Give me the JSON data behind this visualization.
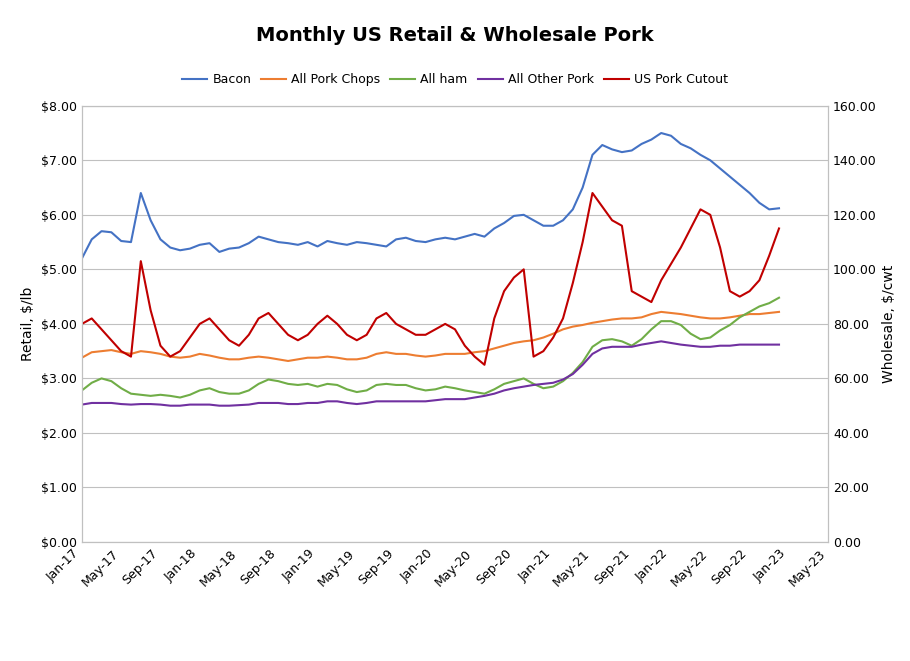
{
  "title": "Monthly US Retail & Wholesale Pork",
  "series": {
    "Bacon": [
      5.2,
      5.55,
      5.7,
      5.68,
      5.52,
      5.5,
      6.4,
      5.9,
      5.55,
      5.4,
      5.35,
      5.38,
      5.45,
      5.48,
      5.32,
      5.38,
      5.4,
      5.48,
      5.6,
      5.55,
      5.5,
      5.48,
      5.45,
      5.5,
      5.42,
      5.52,
      5.48,
      5.45,
      5.5,
      5.48,
      5.45,
      5.42,
      5.55,
      5.58,
      5.52,
      5.5,
      5.55,
      5.58,
      5.55,
      5.6,
      5.65,
      5.6,
      5.75,
      5.85,
      5.98,
      6.0,
      5.9,
      5.8,
      5.8,
      5.9,
      6.1,
      6.5,
      7.1,
      7.28,
      7.2,
      7.15,
      7.18,
      7.3,
      7.38,
      7.5,
      7.45,
      7.3,
      7.22,
      7.1,
      7.0,
      6.85,
      6.7,
      6.55,
      6.4,
      6.22,
      6.1,
      6.12
    ],
    "All Pork Chops": [
      3.38,
      3.48,
      3.5,
      3.52,
      3.48,
      3.45,
      3.5,
      3.48,
      3.45,
      3.4,
      3.38,
      3.4,
      3.45,
      3.42,
      3.38,
      3.35,
      3.35,
      3.38,
      3.4,
      3.38,
      3.35,
      3.32,
      3.35,
      3.38,
      3.38,
      3.4,
      3.38,
      3.35,
      3.35,
      3.38,
      3.45,
      3.48,
      3.45,
      3.45,
      3.42,
      3.4,
      3.42,
      3.45,
      3.45,
      3.45,
      3.48,
      3.5,
      3.55,
      3.6,
      3.65,
      3.68,
      3.7,
      3.75,
      3.82,
      3.9,
      3.95,
      3.98,
      4.02,
      4.05,
      4.08,
      4.1,
      4.1,
      4.12,
      4.18,
      4.22,
      4.2,
      4.18,
      4.15,
      4.12,
      4.1,
      4.1,
      4.12,
      4.15,
      4.18,
      4.18,
      4.2,
      4.22
    ],
    "All ham": [
      2.78,
      2.92,
      3.0,
      2.95,
      2.82,
      2.72,
      2.7,
      2.68,
      2.7,
      2.68,
      2.65,
      2.7,
      2.78,
      2.82,
      2.75,
      2.72,
      2.72,
      2.78,
      2.9,
      2.98,
      2.95,
      2.9,
      2.88,
      2.9,
      2.85,
      2.9,
      2.88,
      2.8,
      2.75,
      2.78,
      2.88,
      2.9,
      2.88,
      2.88,
      2.82,
      2.78,
      2.8,
      2.85,
      2.82,
      2.78,
      2.75,
      2.72,
      2.8,
      2.9,
      2.95,
      3.0,
      2.9,
      2.82,
      2.85,
      2.95,
      3.1,
      3.3,
      3.58,
      3.7,
      3.72,
      3.68,
      3.6,
      3.72,
      3.9,
      4.05,
      4.05,
      3.98,
      3.82,
      3.72,
      3.75,
      3.88,
      3.98,
      4.12,
      4.22,
      4.32,
      4.38,
      4.48
    ],
    "All Other Pork": [
      2.52,
      2.55,
      2.55,
      2.55,
      2.53,
      2.52,
      2.53,
      2.53,
      2.52,
      2.5,
      2.5,
      2.52,
      2.52,
      2.52,
      2.5,
      2.5,
      2.51,
      2.52,
      2.55,
      2.55,
      2.55,
      2.53,
      2.53,
      2.55,
      2.55,
      2.58,
      2.58,
      2.55,
      2.53,
      2.55,
      2.58,
      2.58,
      2.58,
      2.58,
      2.58,
      2.58,
      2.6,
      2.62,
      2.62,
      2.62,
      2.65,
      2.68,
      2.72,
      2.78,
      2.82,
      2.85,
      2.88,
      2.9,
      2.92,
      2.98,
      3.08,
      3.25,
      3.45,
      3.55,
      3.58,
      3.58,
      3.58,
      3.62,
      3.65,
      3.68,
      3.65,
      3.62,
      3.6,
      3.58,
      3.58,
      3.6,
      3.6,
      3.62,
      3.62,
      3.62,
      3.62,
      3.62
    ],
    "US Pork Cutout": [
      80.0,
      82.0,
      78.0,
      74.0,
      70.0,
      68.0,
      103.0,
      85.0,
      72.0,
      68.0,
      70.0,
      75.0,
      80.0,
      82.0,
      78.0,
      74.0,
      72.0,
      76.0,
      82.0,
      84.0,
      80.0,
      76.0,
      74.0,
      76.0,
      80.0,
      83.0,
      80.0,
      76.0,
      74.0,
      76.0,
      82.0,
      84.0,
      80.0,
      78.0,
      76.0,
      76.0,
      78.0,
      80.0,
      78.0,
      72.0,
      68.0,
      65.0,
      82.0,
      92.0,
      97.0,
      100.0,
      68.0,
      70.0,
      75.0,
      82.0,
      95.0,
      110.0,
      128.0,
      123.0,
      118.0,
      116.0,
      92.0,
      90.0,
      88.0,
      96.0,
      102.0,
      108.0,
      115.0,
      122.0,
      120.0,
      108.0,
      92.0,
      90.0,
      92.0,
      96.0,
      105.0,
      115.0
    ]
  },
  "colors": {
    "Bacon": "#4472C4",
    "All Pork Chops": "#ED7D31",
    "All ham": "#70AD47",
    "All Other Pork": "#7030A0",
    "US Pork Cutout": "#C00000"
  },
  "tick_labels": [
    "Jan-17",
    "May-17",
    "Sep-17",
    "Jan-18",
    "May-18",
    "Sep-18",
    "Jan-19",
    "May-19",
    "Sep-19",
    "Jan-20",
    "May-20",
    "Sep-20",
    "Jan-21",
    "May-21",
    "Sep-21",
    "Jan-22",
    "May-22",
    "Sep-22",
    "Jan-23",
    "May-23"
  ],
  "tick_positions": [
    0,
    4,
    8,
    12,
    16,
    20,
    24,
    28,
    32,
    36,
    40,
    44,
    48,
    52,
    56,
    60,
    64,
    68,
    72,
    76
  ],
  "ylabel_left": "Retail, $/lb",
  "ylabel_right": "Wholesale, $/cwt",
  "ylim_left": [
    0.0,
    8.0
  ],
  "ylim_right": [
    0.0,
    160.0
  ],
  "yticks_left": [
    0.0,
    1.0,
    2.0,
    3.0,
    4.0,
    5.0,
    6.0,
    7.0,
    8.0
  ],
  "ytick_labels_left": [
    "$0.00",
    "$1.00",
    "$2.00",
    "$3.00",
    "$4.00",
    "$5.00",
    "$6.00",
    "$7.00",
    "$8.00"
  ],
  "yticks_right": [
    0.0,
    20.0,
    40.0,
    60.0,
    80.0,
    100.0,
    120.0,
    140.0,
    160.0
  ],
  "ytick_labels_right": [
    "0.00",
    "20.00",
    "40.00",
    "60.00",
    "80.00",
    "100.00",
    "120.00",
    "140.00",
    "160.00"
  ]
}
